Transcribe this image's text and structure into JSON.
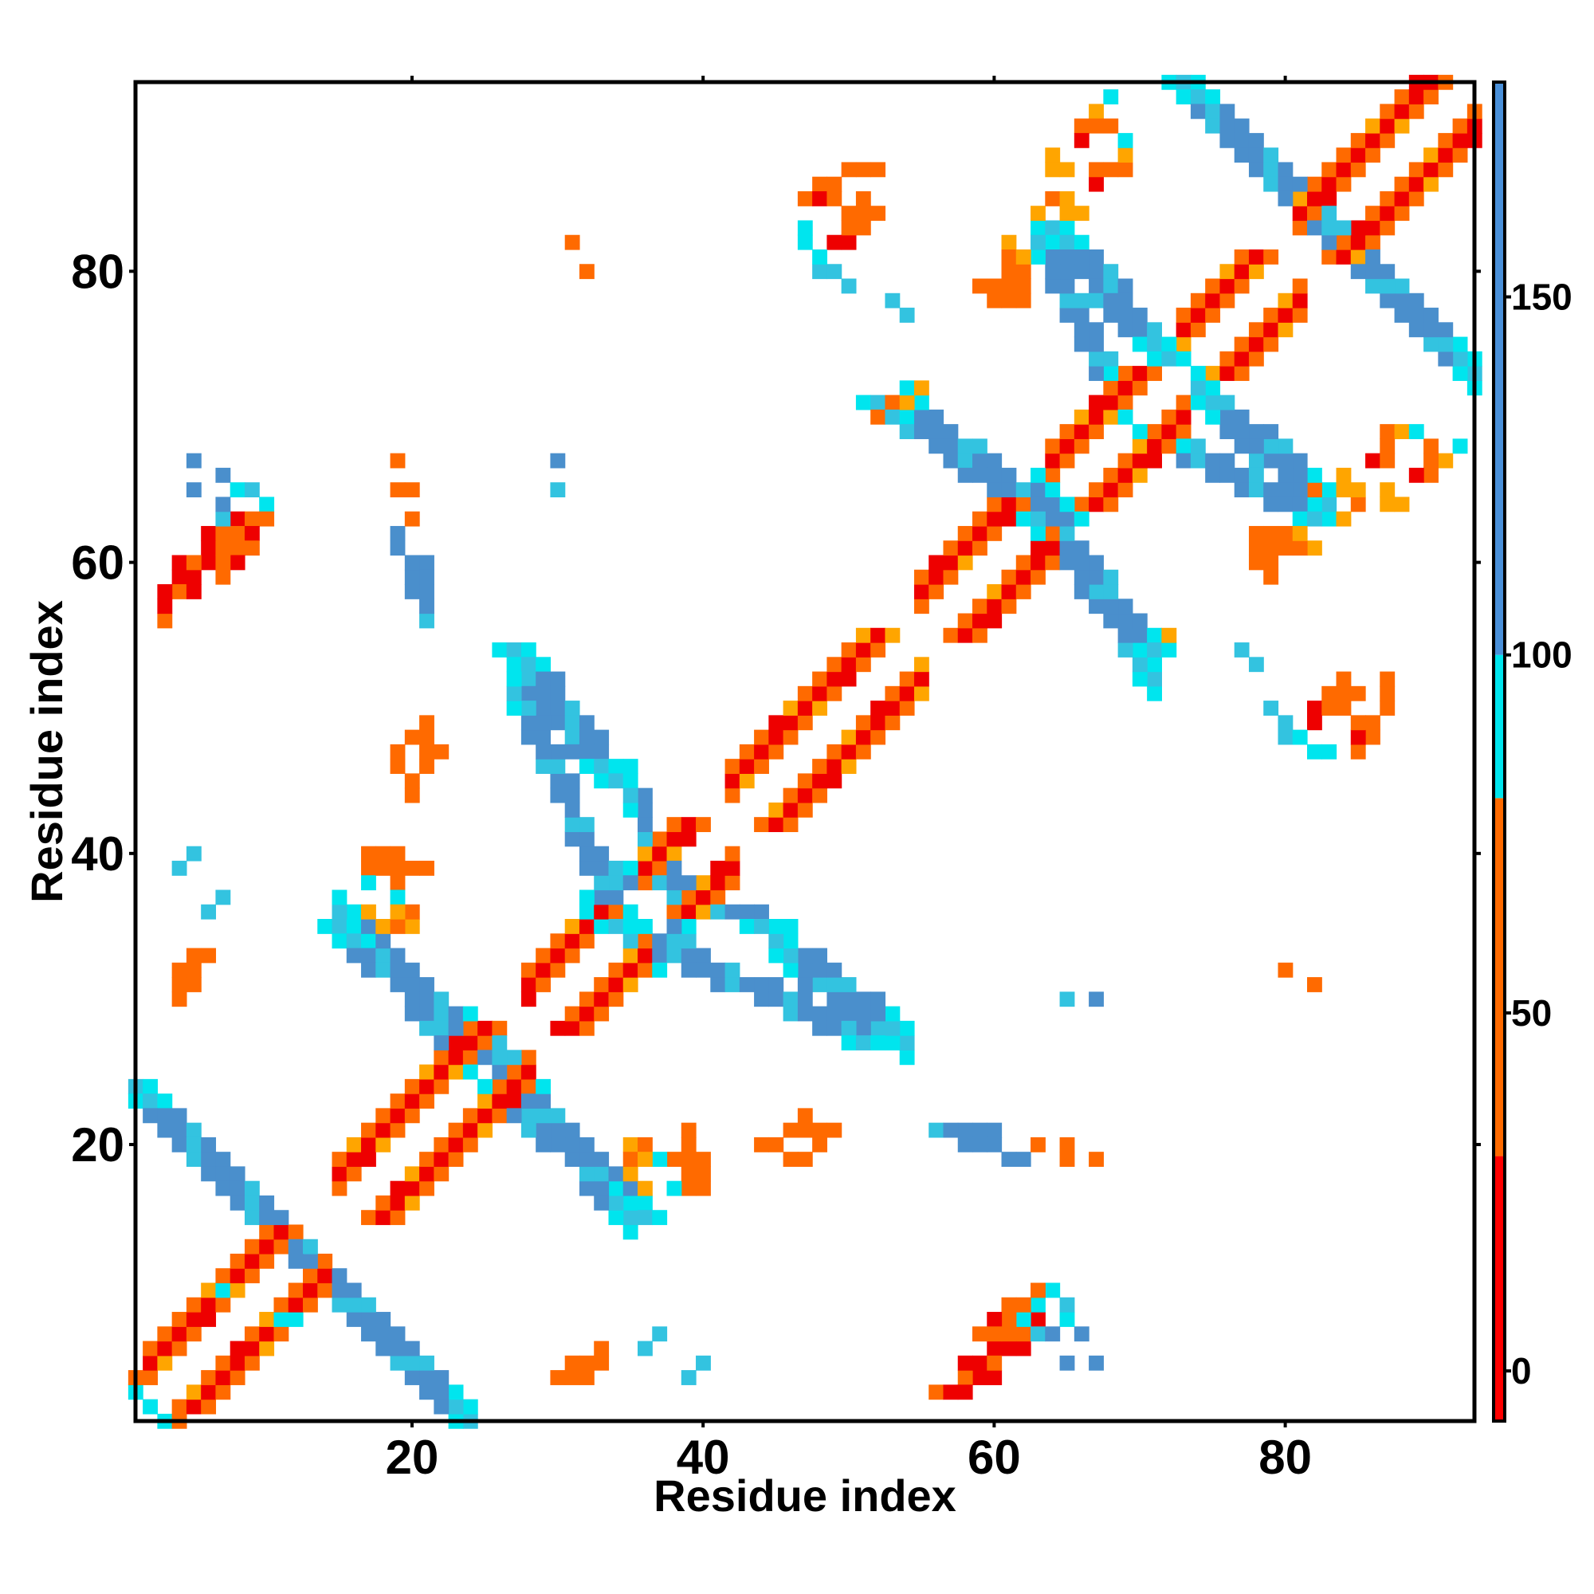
{
  "chart_data": {
    "type": "heatmap",
    "xlabel": "Residue index",
    "ylabel": "Residue index",
    "xlim": [
      1,
      93
    ],
    "ylim": [
      1,
      93
    ],
    "x_ticks": [
      20,
      40,
      60,
      80
    ],
    "y_ticks": [
      20,
      40,
      60,
      80
    ],
    "colorbar": {
      "range": [
        -7,
        180
      ],
      "ticks": [
        0,
        50,
        100,
        150
      ],
      "bands": [
        {
          "from": -7,
          "to": 30,
          "color": "#ff0000"
        },
        {
          "from": 30,
          "to": 80,
          "color": "#ff6a00"
        },
        {
          "from": 80,
          "to": 100,
          "color": "#00e5ee"
        },
        {
          "from": 100,
          "to": 180,
          "color": "#4a90d9"
        }
      ]
    },
    "legend": "right",
    "grid": false,
    "palette": {
      "r": "#ee0000",
      "o": "#ff6a00",
      "y": "#ffa500",
      "c": "#00e5ee",
      "s": "#33c3e0",
      "b": "#4a8fcc"
    },
    "diagonal_helix_segments": [
      [
        2,
        13
      ],
      [
        15,
        27
      ],
      [
        28,
        35
      ],
      [
        36,
        41
      ],
      [
        42,
        54
      ],
      [
        55,
        63
      ],
      [
        64,
        72
      ],
      [
        73,
        80
      ],
      [
        81,
        92
      ]
    ],
    "antiparallel_bands": [
      {
        "x": [
          1,
          23
        ],
        "y": [
          24,
          2
        ]
      },
      {
        "x": [
          15,
          28
        ],
        "y": [
          35,
          24
        ]
      },
      {
        "x": [
          26,
          36
        ],
        "y": [
          24,
          15
        ]
      },
      {
        "x": [
          27,
          34
        ],
        "y": [
          54,
          45
        ]
      },
      {
        "x": [
          34,
          52
        ],
        "y": [
          35,
          27
        ]
      },
      {
        "x": [
          34,
          45
        ],
        "y": [
          39,
          35
        ]
      },
      {
        "x": [
          52,
          65
        ],
        "y": [
          71,
          63
        ]
      },
      {
        "x": [
          63,
          71
        ],
        "y": [
          63,
          54
        ]
      },
      {
        "x": [
          64,
          72
        ],
        "y": [
          83,
          74
        ]
      },
      {
        "x": [
          71,
          82
        ],
        "y": [
          69,
          63
        ]
      },
      {
        "x": [
          73,
          93
        ],
        "y": [
          93,
          73
        ]
      }
    ],
    "contacts": [
      {
        "x": 2,
        "y": 2,
        "v": "c"
      },
      {
        "x": 3,
        "y": 1,
        "v": "c"
      },
      {
        "x": 4,
        "y": 1,
        "v": "o"
      },
      {
        "x": 7,
        "y": 10,
        "v": "c"
      },
      {
        "x": 11,
        "y": 8,
        "v": "c"
      },
      {
        "x": 12,
        "y": 8,
        "v": "c"
      },
      {
        "x": 32,
        "y": 37,
        "v": "c"
      },
      {
        "x": 32,
        "y": 36,
        "v": "c"
      },
      {
        "x": 33,
        "y": 35,
        "v": "c"
      },
      {
        "x": 35,
        "y": 18,
        "v": "y"
      },
      {
        "x": 36,
        "y": 17,
        "v": "y"
      },
      {
        "x": 5,
        "y": 67,
        "v": "b"
      },
      {
        "x": 7,
        "y": 66,
        "v": "b"
      },
      {
        "x": 8,
        "y": 65,
        "v": "c"
      },
      {
        "x": 9,
        "y": 65,
        "v": "s"
      },
      {
        "x": 10,
        "y": 64,
        "v": "c"
      },
      {
        "x": 8,
        "y": 63,
        "v": "r"
      },
      {
        "x": 9,
        "y": 63,
        "v": "o"
      },
      {
        "x": 10,
        "y": 63,
        "v": "o"
      },
      {
        "x": 6,
        "y": 62,
        "v": "r"
      },
      {
        "x": 7,
        "y": 62,
        "v": "o"
      },
      {
        "x": 8,
        "y": 62,
        "v": "o"
      },
      {
        "x": 9,
        "y": 62,
        "v": "r"
      },
      {
        "x": 6,
        "y": 61,
        "v": "r"
      },
      {
        "x": 8,
        "y": 61,
        "v": "o"
      },
      {
        "x": 6,
        "y": 60,
        "v": "r"
      },
      {
        "x": 4,
        "y": 60,
        "v": "r"
      },
      {
        "x": 4,
        "y": 59,
        "v": "r"
      },
      {
        "x": 4,
        "y": 58,
        "v": "o"
      },
      {
        "x": 19,
        "y": 67,
        "v": "o"
      },
      {
        "x": 19,
        "y": 65,
        "v": "o"
      },
      {
        "x": 19,
        "y": 62,
        "v": "b"
      },
      {
        "x": 19,
        "y": 61,
        "v": "b"
      },
      {
        "x": 21,
        "y": 60,
        "v": "b"
      },
      {
        "x": 21,
        "y": 59,
        "v": "b"
      },
      {
        "x": 21,
        "y": 58,
        "v": "b"
      },
      {
        "x": 30,
        "y": 67,
        "v": "b"
      },
      {
        "x": 20,
        "y": 48,
        "v": "o"
      },
      {
        "x": 21,
        "y": 48,
        "v": "o"
      },
      {
        "x": 21,
        "y": 49,
        "v": "o"
      },
      {
        "x": 19,
        "y": 46,
        "v": "o"
      },
      {
        "x": 19,
        "y": 47,
        "v": "o"
      },
      {
        "x": 5,
        "y": 40,
        "v": "s"
      },
      {
        "x": 7,
        "y": 37,
        "v": "s"
      },
      {
        "x": 17,
        "y": 40,
        "v": "o"
      },
      {
        "x": 18,
        "y": 40,
        "v": "o"
      },
      {
        "x": 19,
        "y": 40,
        "v": "o"
      },
      {
        "x": 17,
        "y": 39,
        "v": "o"
      },
      {
        "x": 17,
        "y": 38,
        "v": "c"
      },
      {
        "x": 5,
        "y": 33,
        "v": "o"
      },
      {
        "x": 6,
        "y": 33,
        "v": "o"
      },
      {
        "x": 5,
        "y": 32,
        "v": "o"
      },
      {
        "x": 5,
        "y": 31,
        "v": "o"
      },
      {
        "x": 31,
        "y": 82,
        "v": "o"
      },
      {
        "x": 48,
        "y": 86,
        "v": "o"
      },
      {
        "x": 49,
        "y": 86,
        "v": "o"
      },
      {
        "x": 50,
        "y": 87,
        "v": "o"
      },
      {
        "x": 51,
        "y": 87,
        "v": "o"
      },
      {
        "x": 52,
        "y": 87,
        "v": "o"
      },
      {
        "x": 47,
        "y": 85,
        "v": "o"
      },
      {
        "x": 48,
        "y": 85,
        "v": "r"
      },
      {
        "x": 49,
        "y": 85,
        "v": "o"
      },
      {
        "x": 47,
        "y": 83,
        "v": "c"
      },
      {
        "x": 47,
        "y": 82,
        "v": "c"
      },
      {
        "x": 49,
        "y": 80,
        "v": "s"
      },
      {
        "x": 53,
        "y": 78,
        "v": "s"
      },
      {
        "x": 68,
        "y": 92,
        "v": "c"
      },
      {
        "x": 67,
        "y": 91,
        "v": "y"
      },
      {
        "x": 67,
        "y": 90,
        "v": "o"
      },
      {
        "x": 68,
        "y": 90,
        "v": "o"
      },
      {
        "x": 66,
        "y": 90,
        "v": "o"
      },
      {
        "x": 66,
        "y": 89,
        "v": "r"
      },
      {
        "x": 64,
        "y": 88,
        "v": "y"
      },
      {
        "x": 64,
        "y": 87,
        "v": "y"
      },
      {
        "x": 65,
        "y": 87,
        "v": "y"
      },
      {
        "x": 64,
        "y": 85,
        "v": "o"
      },
      {
        "x": 63,
        "y": 84,
        "v": "y"
      },
      {
        "x": 61,
        "y": 82,
        "v": "y"
      },
      {
        "x": 61,
        "y": 81,
        "v": "o"
      },
      {
        "x": 61,
        "y": 80,
        "v": "o"
      },
      {
        "x": 59,
        "y": 79,
        "v": "o"
      },
      {
        "x": 60,
        "y": 79,
        "v": "o"
      },
      {
        "x": 61,
        "y": 79,
        "v": "o"
      },
      {
        "x": 55,
        "y": 72,
        "v": "y"
      },
      {
        "x": 53,
        "y": 71,
        "v": "o"
      },
      {
        "x": 52,
        "y": 70,
        "v": "o"
      },
      {
        "x": 54,
        "y": 71,
        "v": "y"
      },
      {
        "x": 87,
        "y": 69,
        "v": "o"
      },
      {
        "x": 88,
        "y": 69,
        "v": "y"
      },
      {
        "x": 89,
        "y": 69,
        "v": "c"
      },
      {
        "x": 87,
        "y": 68,
        "v": "o"
      },
      {
        "x": 86,
        "y": 67,
        "v": "r"
      },
      {
        "x": 87,
        "y": 67,
        "v": "o"
      },
      {
        "x": 84,
        "y": 66,
        "v": "y"
      },
      {
        "x": 84,
        "y": 65,
        "v": "y"
      },
      {
        "x": 85,
        "y": 65,
        "v": "y"
      },
      {
        "x": 82,
        "y": 65,
        "v": "o"
      },
      {
        "x": 79,
        "y": 62,
        "v": "o"
      },
      {
        "x": 80,
        "y": 62,
        "v": "o"
      },
      {
        "x": 81,
        "y": 62,
        "v": "y"
      },
      {
        "x": 78,
        "y": 62,
        "v": "o"
      },
      {
        "x": 78,
        "y": 61,
        "v": "o"
      },
      {
        "x": 78,
        "y": 60,
        "v": "o"
      },
      {
        "x": 77,
        "y": 54,
        "v": "s"
      },
      {
        "x": 79,
        "y": 50,
        "v": "s"
      },
      {
        "x": 84,
        "y": 52,
        "v": "o"
      },
      {
        "x": 84,
        "y": 51,
        "v": "o"
      },
      {
        "x": 85,
        "y": 51,
        "v": "o"
      },
      {
        "x": 83,
        "y": 51,
        "v": "o"
      },
      {
        "x": 82,
        "y": 50,
        "v": "r"
      },
      {
        "x": 83,
        "y": 50,
        "v": "o"
      },
      {
        "x": 84,
        "y": 50,
        "v": "o"
      },
      {
        "x": 82,
        "y": 49,
        "v": "r"
      },
      {
        "x": 80,
        "y": 48,
        "v": "s"
      },
      {
        "x": 81,
        "y": 48,
        "v": "c"
      },
      {
        "x": 80,
        "y": 32,
        "v": "o"
      },
      {
        "x": 65,
        "y": 30,
        "v": "s"
      },
      {
        "x": 47,
        "y": 22,
        "v": "o"
      },
      {
        "x": 46,
        "y": 21,
        "v": "o"
      },
      {
        "x": 47,
        "y": 21,
        "v": "o"
      },
      {
        "x": 45,
        "y": 20,
        "v": "o"
      },
      {
        "x": 44,
        "y": 20,
        "v": "o"
      },
      {
        "x": 56,
        "y": 21,
        "v": "s"
      },
      {
        "x": 57,
        "y": 21,
        "v": "b"
      },
      {
        "x": 58,
        "y": 20,
        "v": "b"
      },
      {
        "x": 59,
        "y": 20,
        "v": "b"
      },
      {
        "x": 60,
        "y": 20,
        "v": "b"
      },
      {
        "x": 63,
        "y": 20,
        "v": "o"
      },
      {
        "x": 65,
        "y": 20,
        "v": "o"
      },
      {
        "x": 39,
        "y": 21,
        "v": "o"
      },
      {
        "x": 39,
        "y": 20,
        "v": "o"
      },
      {
        "x": 39,
        "y": 19,
        "v": "o"
      },
      {
        "x": 39,
        "y": 18,
        "v": "o"
      },
      {
        "x": 38,
        "y": 19,
        "v": "o"
      },
      {
        "x": 37,
        "y": 19,
        "v": "c"
      },
      {
        "x": 35,
        "y": 20,
        "v": "y"
      },
      {
        "x": 36,
        "y": 20,
        "v": "o"
      },
      {
        "x": 35,
        "y": 19,
        "v": "o"
      },
      {
        "x": 36,
        "y": 19,
        "v": "y"
      },
      {
        "x": 61,
        "y": 9,
        "v": "o"
      },
      {
        "x": 62,
        "y": 9,
        "v": "o"
      },
      {
        "x": 63,
        "y": 9,
        "v": "c"
      },
      {
        "x": 60,
        "y": 8,
        "v": "r"
      },
      {
        "x": 61,
        "y": 8,
        "v": "o"
      },
      {
        "x": 62,
        "y": 8,
        "v": "c"
      },
      {
        "x": 59,
        "y": 7,
        "v": "o"
      },
      {
        "x": 60,
        "y": 7,
        "v": "o"
      },
      {
        "x": 61,
        "y": 7,
        "v": "o"
      },
      {
        "x": 63,
        "y": 7,
        "v": "s"
      },
      {
        "x": 64,
        "y": 7,
        "v": "b"
      },
      {
        "x": 58,
        "y": 5,
        "v": "r"
      },
      {
        "x": 59,
        "y": 5,
        "v": "r"
      },
      {
        "x": 60,
        "y": 5,
        "v": "o"
      },
      {
        "x": 56,
        "y": 3,
        "v": "o"
      },
      {
        "x": 57,
        "y": 3,
        "v": "r"
      },
      {
        "x": 58,
        "y": 3,
        "v": "r"
      },
      {
        "x": 65,
        "y": 5,
        "v": "b"
      },
      {
        "x": 30,
        "y": 4,
        "v": "o"
      },
      {
        "x": 31,
        "y": 4,
        "v": "o"
      },
      {
        "x": 32,
        "y": 4,
        "v": "o"
      },
      {
        "x": 32,
        "y": 5,
        "v": "o"
      },
      {
        "x": 36,
        "y": 6,
        "v": "s"
      },
      {
        "x": 39,
        "y": 4,
        "v": "s"
      }
    ]
  }
}
